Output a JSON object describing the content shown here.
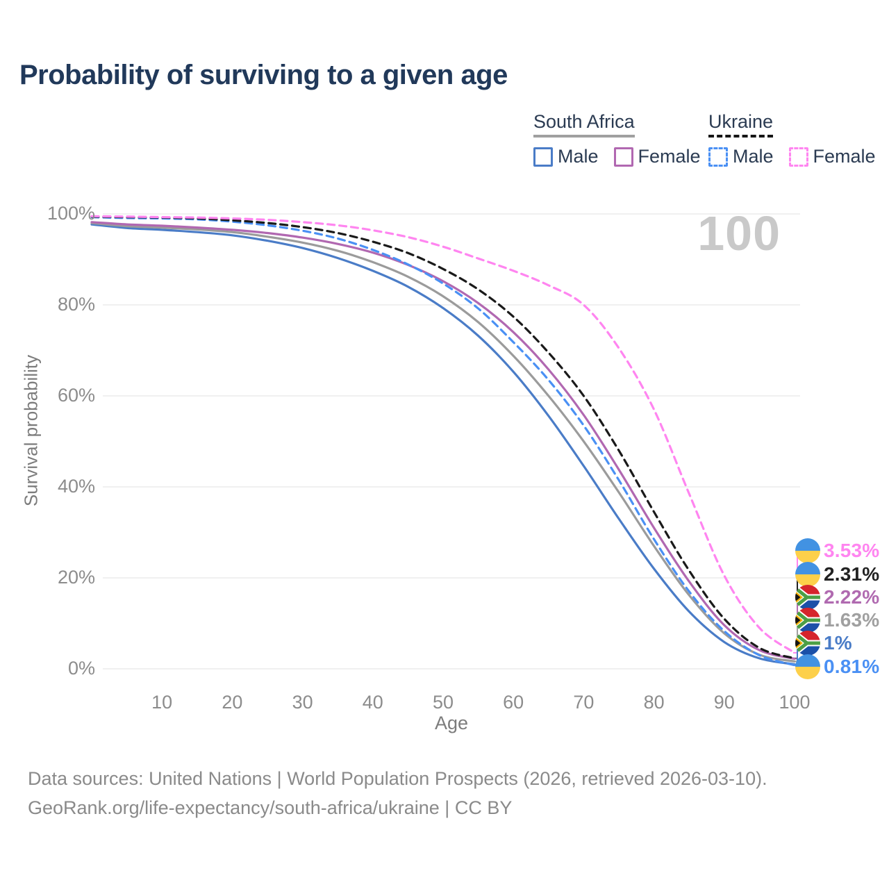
{
  "title": "Probability of surviving to a given age",
  "watermark_age": "100",
  "colors": {
    "title_text": "#21395a",
    "legend_text": "#2b3b52",
    "axis_text": "#8c8c8c",
    "axis_title_text": "#7c7c7c",
    "grid": "#ececec",
    "watermark": "#c9c9c9",
    "footer_text": "#8a8a8a",
    "sa_male": "#4a7cc7",
    "sa_both": "#9b9b9b",
    "sa_female": "#b168b1",
    "ua_male": "#4a90f4",
    "ua_both": "#1a1a1a",
    "ua_female": "#ff85f0"
  },
  "legend": {
    "groups": [
      {
        "country": "South Africa",
        "line_style": "solid",
        "underline_color": "#a0a0a0",
        "items": [
          {
            "label": "Male",
            "color": "#4a7cc7",
            "dashed": false
          },
          {
            "label": "Female",
            "color": "#b168b1",
            "dashed": false
          }
        ]
      },
      {
        "country": "Ukraine",
        "line_style": "dashed",
        "underline_color": "#161616",
        "items": [
          {
            "label": "Male",
            "color": "#4a90f4",
            "dashed": true
          },
          {
            "label": "Female",
            "color": "#ff85f0",
            "dashed": true
          }
        ]
      }
    ]
  },
  "chart_data": {
    "type": "line",
    "title": "Probability of surviving to a given age",
    "xlabel": "Age",
    "ylabel": "Survival probability",
    "xlim": [
      0,
      100
    ],
    "ylim": [
      0,
      100
    ],
    "x_ticks": [
      10,
      20,
      30,
      40,
      50,
      60,
      70,
      80,
      90,
      100
    ],
    "y_ticks": [
      0,
      20,
      40,
      60,
      80,
      100
    ],
    "y_tick_labels": [
      "0%",
      "20%",
      "40%",
      "60%",
      "80%",
      "100%"
    ],
    "grid": "horizontal-only",
    "legend_position": "top-right",
    "x": [
      0,
      5,
      10,
      15,
      20,
      25,
      30,
      35,
      40,
      45,
      50,
      55,
      60,
      65,
      70,
      75,
      80,
      85,
      90,
      95,
      100
    ],
    "series": [
      {
        "id": "sa-male",
        "country": "South Africa",
        "sex": "Male",
        "style": "solid",
        "color": "#4a7cc7",
        "end_label": "1%",
        "values": [
          97.7,
          96.9,
          96.5,
          96.0,
          95.3,
          94.1,
          92.5,
          90.3,
          87.5,
          84.0,
          79.3,
          73.2,
          65.3,
          55.6,
          44.6,
          33.0,
          22.0,
          12.6,
          5.9,
          2.3,
          1.0
        ]
      },
      {
        "id": "sa-both",
        "country": "South Africa",
        "sex": "Both sexes",
        "style": "solid",
        "color": "#9b9b9b",
        "end_label": "1.63%",
        "values": [
          98.0,
          97.3,
          97.0,
          96.6,
          96.0,
          95.0,
          93.7,
          91.9,
          89.4,
          86.2,
          81.9,
          76.2,
          68.8,
          60.0,
          50.0,
          38.8,
          27.0,
          16.2,
          7.8,
          3.1,
          1.63
        ]
      },
      {
        "id": "sa-female",
        "country": "South Africa",
        "sex": "Female",
        "style": "solid",
        "color": "#b168b1",
        "end_label": "2.22%",
        "values": [
          98.2,
          97.7,
          97.4,
          97.0,
          96.5,
          95.8,
          94.8,
          93.4,
          91.5,
          88.8,
          85.2,
          80.4,
          74.0,
          65.8,
          55.8,
          43.8,
          31.0,
          19.2,
          9.6,
          4.1,
          2.22
        ]
      },
      {
        "id": "ua-male",
        "country": "Ukraine",
        "sex": "Male",
        "style": "dashed",
        "color": "#4a90f4",
        "end_label": "0.81%",
        "values": [
          99.3,
          99.1,
          99.0,
          98.8,
          98.3,
          97.5,
          96.3,
          94.6,
          92.1,
          88.9,
          84.7,
          79.2,
          71.8,
          63.5,
          53.5,
          41.5,
          28.5,
          17.0,
          8.3,
          3.0,
          0.81
        ]
      },
      {
        "id": "ua-both",
        "country": "Ukraine",
        "sex": "Both sexes",
        "style": "dashed",
        "color": "#1a1a1a",
        "end_label": "2.31%",
        "values": [
          99.4,
          99.3,
          99.2,
          99.0,
          98.6,
          98.0,
          97.1,
          95.8,
          93.9,
          91.4,
          87.9,
          83.4,
          77.4,
          69.5,
          60.0,
          48.0,
          34.5,
          21.6,
          11.0,
          4.6,
          2.31
        ]
      },
      {
        "id": "ua-female",
        "country": "Ukraine",
        "sex": "Female",
        "style": "dashed",
        "color": "#ff85f0",
        "end_label": "3.53%",
        "values": [
          99.5,
          99.4,
          99.3,
          99.2,
          99.0,
          98.7,
          98.2,
          97.5,
          96.4,
          94.9,
          92.8,
          90.2,
          87.5,
          84.3,
          80.0,
          70.5,
          57.0,
          38.5,
          20.5,
          9.0,
          3.53
        ]
      }
    ]
  },
  "end_labels": [
    {
      "series": "ua-female",
      "text": "3.53%",
      "color": "#ff85f0",
      "flag": "ukraine"
    },
    {
      "series": "ua-both",
      "text": "2.31%",
      "color": "#222222",
      "flag": "ukraine"
    },
    {
      "series": "sa-female",
      "text": "2.22%",
      "color": "#b06ab0",
      "flag": "south-africa"
    },
    {
      "series": "sa-both",
      "text": "1.63%",
      "color": "#a0a0a0",
      "flag": "south-africa"
    },
    {
      "series": "sa-male",
      "text": "1%",
      "color": "#4a7cc7",
      "flag": "south-africa"
    },
    {
      "series": "ua-male",
      "text": "0.81%",
      "color": "#4a90f4",
      "flag": "ukraine"
    }
  ],
  "flag_colors": {
    "ukraine": {
      "top": "#4292e2",
      "bottom": "#fdd04a"
    },
    "south_africa": {
      "red": "#d6242c",
      "blue": "#1b50a8",
      "green": "#4c9f45",
      "gold": "#f5b000",
      "black": "#161616",
      "white": "#ffffff"
    }
  },
  "footer": {
    "line1": "Data sources: United Nations | World Population Prospects (2026, retrieved 2026-03-10).",
    "line2": "GeoRank.org/life-expectancy/south-africa/ukraine | CC BY"
  }
}
